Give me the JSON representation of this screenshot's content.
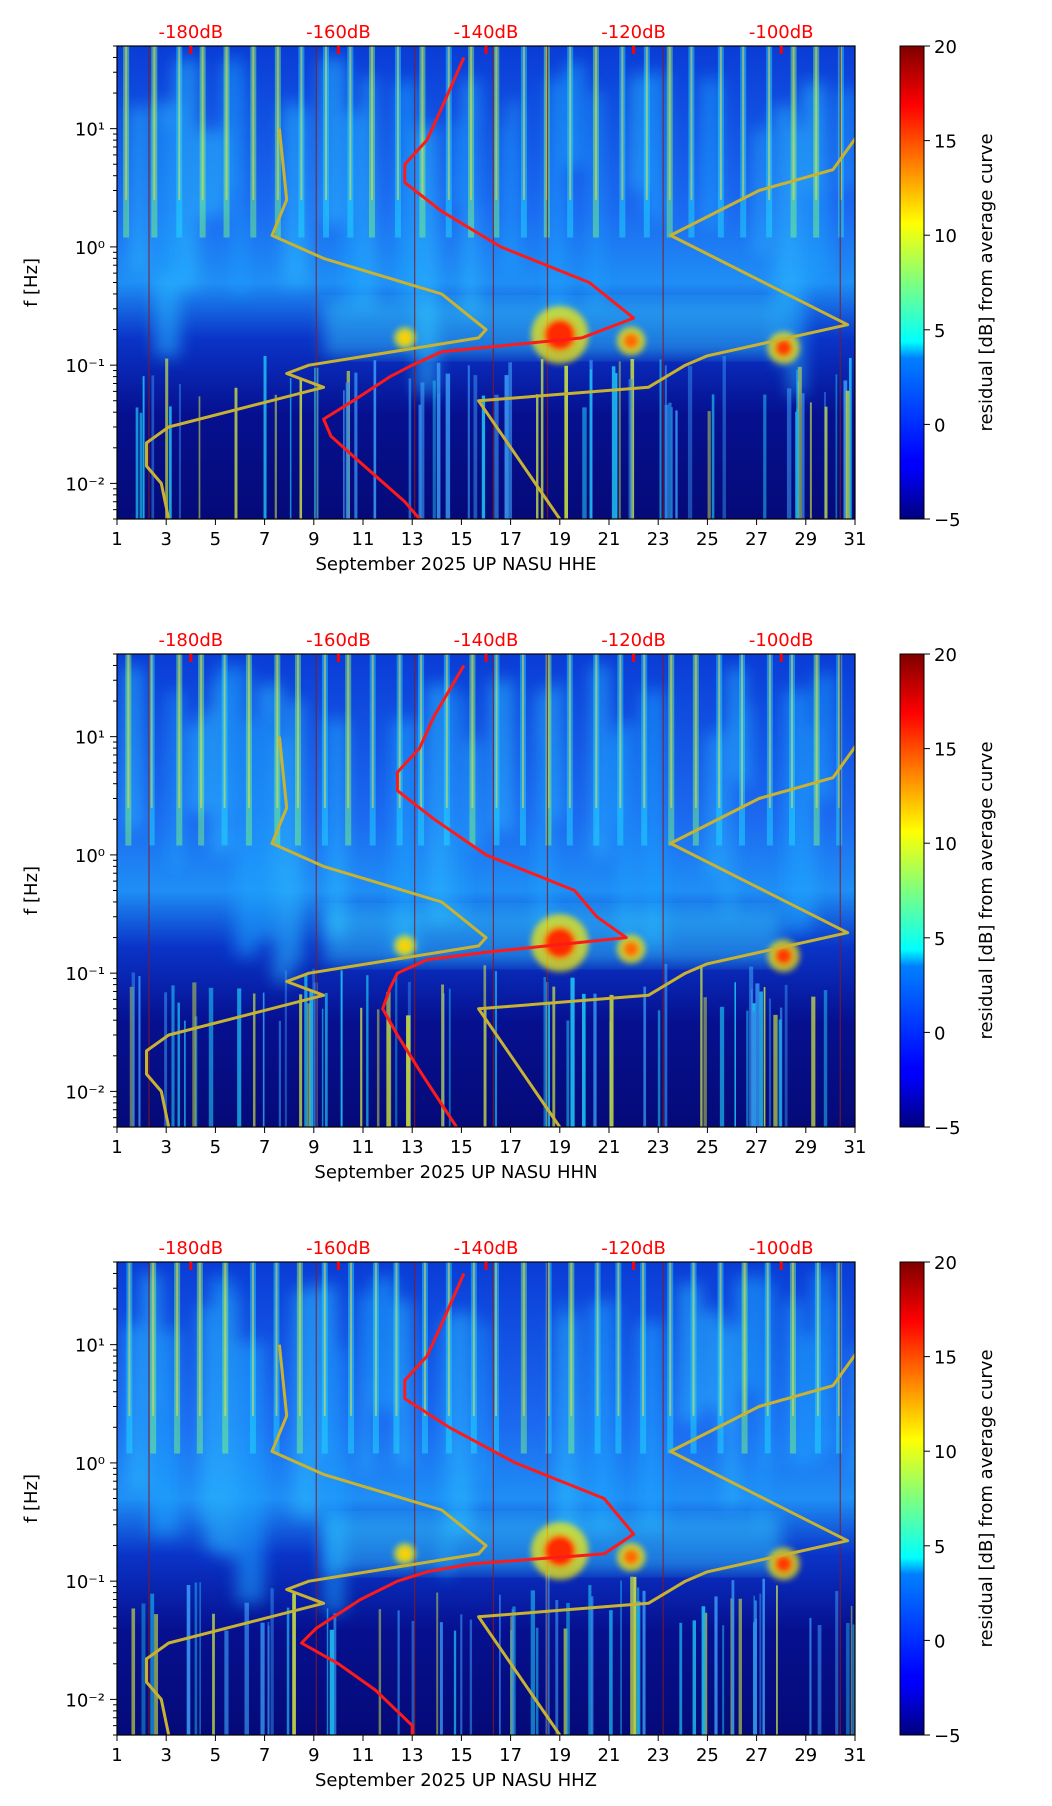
{
  "chart_data": [
    {
      "type": "heatmap",
      "title": "",
      "xlabel": "September 2025 UP NASU  HHE",
      "ylabel": "f [Hz]",
      "x_ticks": [
        "1",
        "3",
        "5",
        "7",
        "9",
        "11",
        "13",
        "15",
        "17",
        "19",
        "21",
        "23",
        "25",
        "27",
        "29",
        "31"
      ],
      "xlim": [
        1,
        31
      ],
      "y_ticks": [
        "10⁻²",
        "10⁻¹",
        "10⁰",
        "10¹"
      ],
      "ylim": [
        0.005,
        50
      ],
      "top_axis_labels": [
        "-180dB",
        "-160dB",
        "-140dB",
        "-120dB",
        "-100dB"
      ],
      "colorbar": {
        "label": "residual [dB] from average curve",
        "ticks": [
          "−5",
          "0",
          "5",
          "10",
          "15",
          "20"
        ],
        "range": [
          -5,
          20
        ]
      },
      "series": [
        {
          "name": "red average curve",
          "color": "#ff1a1a",
          "points": [
            [
              -143,
              40
            ],
            [
              -146,
              15
            ],
            [
              -148,
              8
            ],
            [
              -151,
              5
            ],
            [
              -151,
              3.5
            ],
            [
              -146,
              2
            ],
            [
              -138,
              1
            ],
            [
              -126,
              0.5
            ],
            [
              -120,
              0.25
            ],
            [
              -127,
              0.17
            ],
            [
              -146,
              0.13
            ],
            [
              -150,
              0.1
            ],
            [
              -153,
              0.08
            ],
            [
              -158,
              0.05
            ],
            [
              -162,
              0.035
            ],
            [
              -161,
              0.025
            ],
            [
              -157,
              0.015
            ],
            [
              -151,
              0.007
            ],
            [
              -149,
              0.005
            ]
          ]
        },
        {
          "name": "yellow reference curve (low)",
          "color": "#c8b232",
          "points": [
            [
              -168,
              10
            ],
            [
              -167,
              2.5
            ],
            [
              -169,
              1.25
            ],
            [
              -162,
              0.8
            ],
            [
              -146,
              0.4
            ],
            [
              -140,
              0.2
            ],
            [
              -141,
              0.17
            ],
            [
              -164,
              0.1
            ],
            [
              -167,
              0.085
            ],
            [
              -162,
              0.065
            ],
            [
              -172,
              0.045
            ],
            [
              -183,
              0.03
            ],
            [
              -186,
              0.022
            ],
            [
              -186,
              0.014
            ],
            [
              -184,
              0.01
            ],
            [
              -183,
              0.005
            ]
          ]
        },
        {
          "name": "yellow reference curve (high)",
          "color": "#c8b232",
          "points": [
            [
              -89,
              10
            ],
            [
              -93,
              4.5
            ],
            [
              -103,
              3
            ],
            [
              -115,
              1.25
            ],
            [
              -91,
              0.22
            ],
            [
              -110,
              0.12
            ],
            [
              -113,
              0.1
            ],
            [
              -118,
              0.065
            ],
            [
              -141,
              0.05
            ],
            [
              -130,
              0.005
            ]
          ]
        }
      ]
    },
    {
      "type": "heatmap",
      "title": "",
      "xlabel": "September 2025 UP NASU  HHN",
      "ylabel": "f [Hz]",
      "x_ticks": [
        "1",
        "3",
        "5",
        "7",
        "9",
        "11",
        "13",
        "15",
        "17",
        "19",
        "21",
        "23",
        "25",
        "27",
        "29",
        "31"
      ],
      "xlim": [
        1,
        31
      ],
      "y_ticks": [
        "10⁻²",
        "10⁻¹",
        "10⁰",
        "10¹"
      ],
      "ylim": [
        0.005,
        50
      ],
      "top_axis_labels": [
        "-180dB",
        "-160dB",
        "-140dB",
        "-120dB",
        "-100dB"
      ],
      "colorbar": {
        "label": "residual [dB] from average curve",
        "ticks": [
          "−5",
          "0",
          "5",
          "10",
          "15",
          "20"
        ],
        "range": [
          -5,
          20
        ]
      },
      "series": [
        {
          "name": "red average curve",
          "color": "#ff1a1a",
          "points": [
            [
              -143,
              40
            ],
            [
              -147,
              15
            ],
            [
              -149,
              8
            ],
            [
              -152,
              5
            ],
            [
              -152,
              3.5
            ],
            [
              -147,
              2
            ],
            [
              -140,
              1
            ],
            [
              -128,
              0.5
            ],
            [
              -125,
              0.3
            ],
            [
              -121,
              0.2
            ],
            [
              -140,
              0.15
            ],
            [
              -148,
              0.13
            ],
            [
              -152,
              0.1
            ],
            [
              -153,
              0.075
            ],
            [
              -154,
              0.05
            ],
            [
              -152,
              0.03
            ],
            [
              -149,
              0.015
            ],
            [
              -144,
              0.005
            ]
          ]
        },
        {
          "name": "yellow reference curve (low)",
          "color": "#c8b232",
          "points": [
            [
              -168,
              10
            ],
            [
              -167,
              2.5
            ],
            [
              -169,
              1.25
            ],
            [
              -162,
              0.8
            ],
            [
              -146,
              0.4
            ],
            [
              -140,
              0.2
            ],
            [
              -141,
              0.17
            ],
            [
              -164,
              0.1
            ],
            [
              -167,
              0.085
            ],
            [
              -162,
              0.065
            ],
            [
              -172,
              0.045
            ],
            [
              -183,
              0.03
            ],
            [
              -186,
              0.022
            ],
            [
              -186,
              0.014
            ],
            [
              -184,
              0.01
            ],
            [
              -183,
              0.005
            ]
          ]
        },
        {
          "name": "yellow reference curve (high)",
          "color": "#c8b232",
          "points": [
            [
              -89,
              10
            ],
            [
              -93,
              4.5
            ],
            [
              -103,
              3
            ],
            [
              -115,
              1.25
            ],
            [
              -91,
              0.22
            ],
            [
              -110,
              0.12
            ],
            [
              -113,
              0.1
            ],
            [
              -118,
              0.065
            ],
            [
              -141,
              0.05
            ],
            [
              -130,
              0.005
            ]
          ]
        }
      ]
    },
    {
      "type": "heatmap",
      "title": "",
      "xlabel": "September 2025 UP NASU  HHZ",
      "ylabel": "f [Hz]",
      "x_ticks": [
        "1",
        "3",
        "5",
        "7",
        "9",
        "11",
        "13",
        "15",
        "17",
        "19",
        "21",
        "23",
        "25",
        "27",
        "29",
        "31"
      ],
      "xlim": [
        1,
        31
      ],
      "y_ticks": [
        "10⁻²",
        "10⁻¹",
        "10⁰",
        "10¹"
      ],
      "ylim": [
        0.005,
        50
      ],
      "top_axis_labels": [
        "-180dB",
        "-160dB",
        "-140dB",
        "-120dB",
        "-100dB"
      ],
      "colorbar": {
        "label": "residual [dB] from average curve",
        "ticks": [
          "−5",
          "0",
          "5",
          "10",
          "15",
          "20"
        ],
        "range": [
          -5,
          20
        ]
      },
      "series": [
        {
          "name": "red average curve",
          "color": "#ff1a1a",
          "points": [
            [
              -143,
              40
            ],
            [
              -146,
              15
            ],
            [
              -148,
              8
            ],
            [
              -151,
              5
            ],
            [
              -151,
              3.5
            ],
            [
              -145,
              2
            ],
            [
              -136,
              1
            ],
            [
              -124,
              0.5
            ],
            [
              -120,
              0.25
            ],
            [
              -124,
              0.17
            ],
            [
              -142,
              0.14
            ],
            [
              -148,
              0.12
            ],
            [
              -152,
              0.1
            ],
            [
              -157,
              0.07
            ],
            [
              -163,
              0.04
            ],
            [
              -165,
              0.03
            ],
            [
              -160,
              0.02
            ],
            [
              -155,
              0.012
            ],
            [
              -150,
              0.006
            ],
            [
              -150,
              0.005
            ]
          ]
        },
        {
          "name": "yellow reference curve (low)",
          "color": "#c8b232",
          "points": [
            [
              -168,
              10
            ],
            [
              -167,
              2.5
            ],
            [
              -169,
              1.25
            ],
            [
              -162,
              0.8
            ],
            [
              -146,
              0.4
            ],
            [
              -140,
              0.2
            ],
            [
              -141,
              0.17
            ],
            [
              -164,
              0.1
            ],
            [
              -167,
              0.085
            ],
            [
              -162,
              0.065
            ],
            [
              -172,
              0.045
            ],
            [
              -183,
              0.03
            ],
            [
              -186,
              0.022
            ],
            [
              -186,
              0.014
            ],
            [
              -184,
              0.01
            ],
            [
              -183,
              0.005
            ]
          ]
        },
        {
          "name": "yellow reference curve (high)",
          "color": "#c8b232",
          "points": [
            [
              -89,
              10
            ],
            [
              -93,
              4.5
            ],
            [
              -103,
              3
            ],
            [
              -115,
              1.25
            ],
            [
              -91,
              0.22
            ],
            [
              -110,
              0.12
            ],
            [
              -113,
              0.1
            ],
            [
              -118,
              0.065
            ],
            [
              -141,
              0.05
            ],
            [
              -130,
              0.005
            ]
          ]
        }
      ]
    }
  ]
}
